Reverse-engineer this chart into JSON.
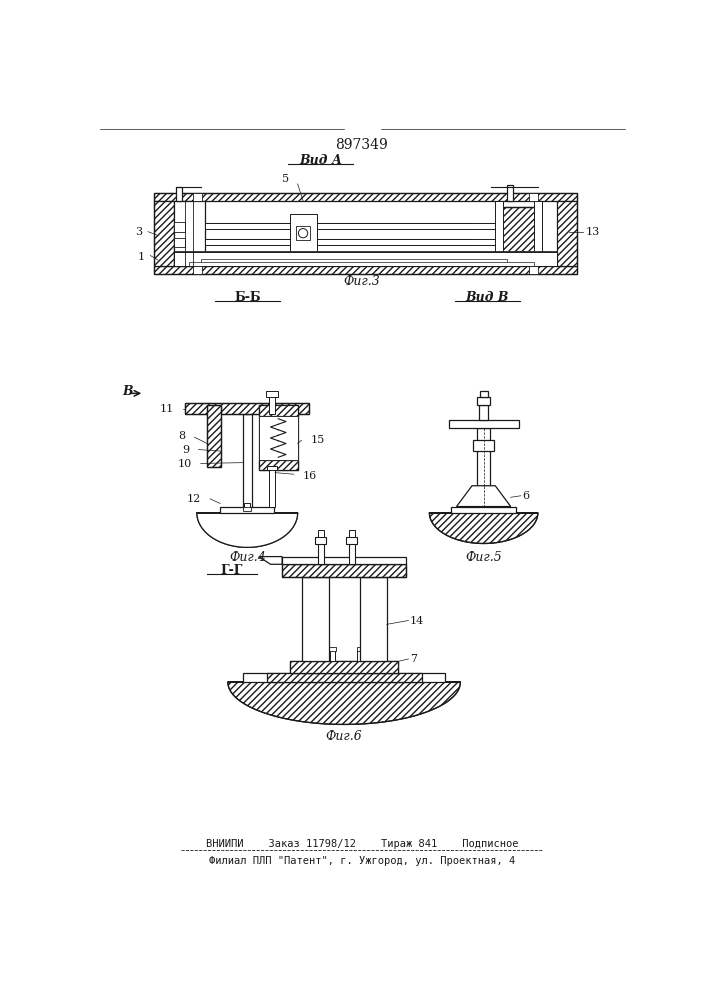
{
  "patent_number": "897349",
  "fig3_label": "Вид А",
  "fig3_caption": "Фиг.3",
  "fig4_label": "Б-Б",
  "fig4_caption": "Фиг.4",
  "fig5_label": "Вид В",
  "fig5_caption": "Фиг.5",
  "fig6_label": "Г-Г",
  "fig6_caption": "Фиг.6",
  "arrow_label": "В",
  "bottom_line1": "ВНИИПИ    Заказ 11798/12    Тираж 841    Подписное",
  "bottom_line2": "Филиал ПЛП \"Патент\", г. Ужгород, ул. Проектная, 4",
  "bg_color": "#ffffff",
  "line_color": "#1a1a1a"
}
